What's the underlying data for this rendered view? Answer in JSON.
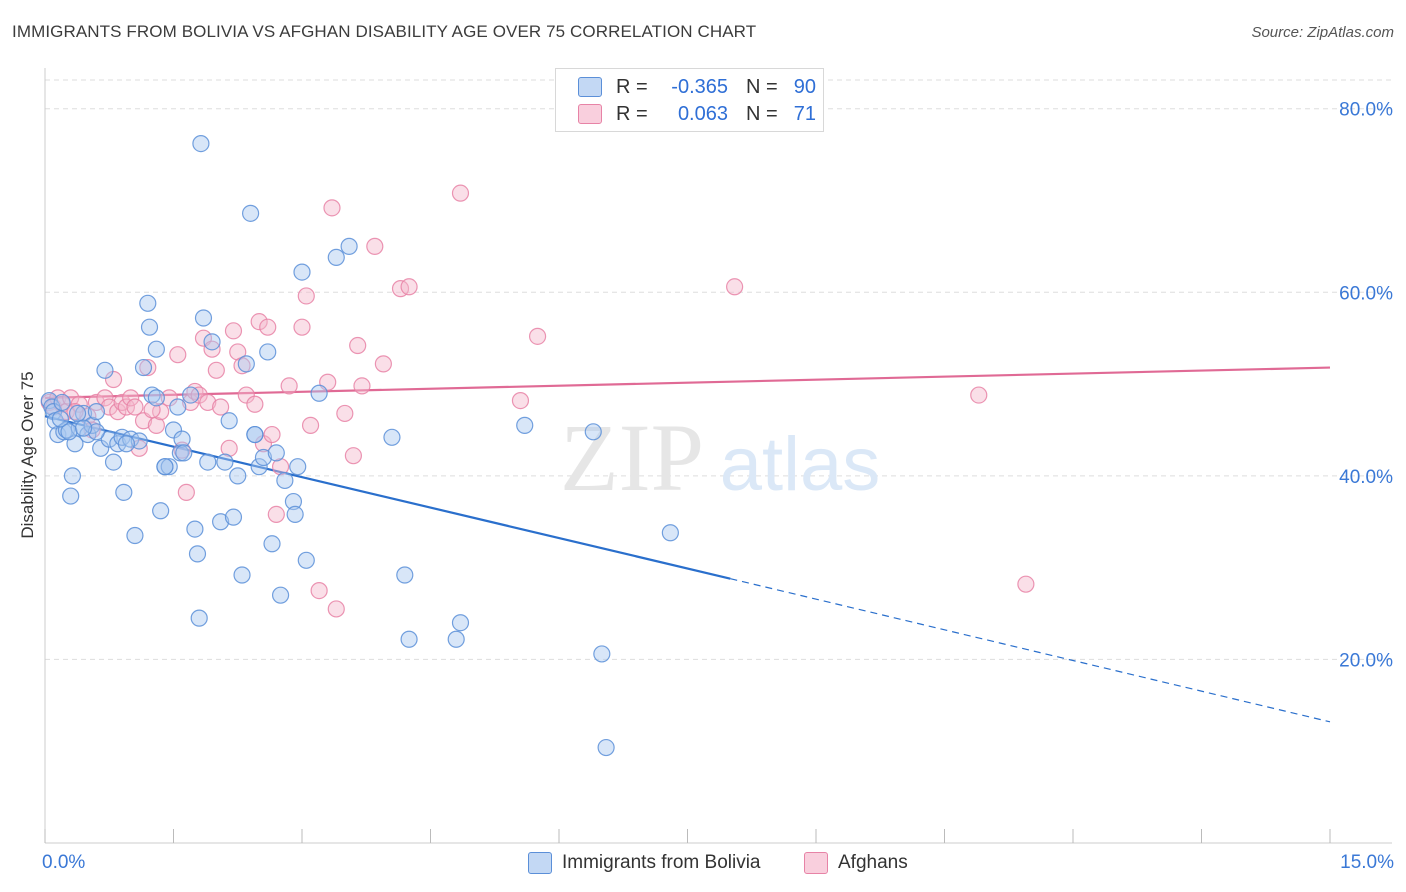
{
  "title": "IMMIGRANTS FROM BOLIVIA VS AFGHAN DISABILITY AGE OVER 75 CORRELATION CHART",
  "source": "Source: ZipAtlas.com",
  "legend_top": {
    "rows": [
      {
        "r_label": "R =",
        "r_value": "-0.365",
        "n_label": "N =",
        "n_value": "90"
      },
      {
        "r_label": "R =",
        "r_value": "0.063",
        "n_label": "N =",
        "n_value": "71"
      }
    ]
  },
  "legend_bottom": [
    "Immigrants from Bolivia",
    "Afghans"
  ],
  "x_tick_left": "0.0%",
  "x_tick_right": "15.0%",
  "watermark": {
    "zip": "ZIP",
    "atlas": "atlas"
  },
  "colors": {
    "blue_fill": "#a9c8f0",
    "blue_stroke": "#5b8fd8",
    "blue_line": "#2a6fcc",
    "pink_fill": "#f5b8cc",
    "pink_stroke": "#e783a6",
    "pink_line": "#e06a95",
    "tick_label": "#3a78d6",
    "grid": "#dddddd"
  },
  "chart_data": {
    "type": "scatter",
    "title": "IMMIGRANTS FROM BOLIVIA VS AFGHAN DISABILITY AGE OVER 75 CORRELATION CHART",
    "xlabel": "",
    "ylabel": "Disability Age Over 75",
    "xlim": [
      0,
      15
    ],
    "ylim": [
      0,
      84
    ],
    "y_ticks": [
      {
        "value": 20,
        "label": "20.0%"
      },
      {
        "value": 40,
        "label": "40.0%"
      },
      {
        "value": 60,
        "label": "60.0%"
      },
      {
        "value": 80,
        "label": "80.0%"
      }
    ],
    "grid": true,
    "legend_position": "top-center",
    "series": [
      {
        "name": "Immigrants from Bolivia",
        "R": -0.365,
        "N": 90,
        "trend": {
          "x0": 0,
          "y0": 46.5,
          "x1": 8.0,
          "y1": 28.8,
          "dash_x1": 15.0,
          "dash_y1": 13.2
        },
        "points": [
          [
            0.05,
            48.2
          ],
          [
            0.08,
            47.5
          ],
          [
            0.1,
            47.0
          ],
          [
            0.12,
            46.0
          ],
          [
            0.15,
            44.5
          ],
          [
            0.2,
            48.0
          ],
          [
            0.22,
            44.8
          ],
          [
            0.25,
            45.0
          ],
          [
            0.3,
            37.8
          ],
          [
            0.32,
            40.0
          ],
          [
            0.35,
            43.5
          ],
          [
            0.4,
            45.2
          ],
          [
            0.45,
            46.8
          ],
          [
            0.5,
            44.5
          ],
          [
            0.55,
            45.5
          ],
          [
            0.6,
            47.0
          ],
          [
            0.65,
            43.0
          ],
          [
            0.7,
            51.5
          ],
          [
            0.75,
            44.0
          ],
          [
            0.8,
            41.5
          ],
          [
            0.85,
            43.5
          ],
          [
            0.9,
            44.2
          ],
          [
            0.92,
            38.2
          ],
          [
            1.0,
            44.0
          ],
          [
            1.05,
            33.5
          ],
          [
            1.1,
            43.8
          ],
          [
            1.15,
            51.8
          ],
          [
            1.2,
            58.8
          ],
          [
            1.22,
            56.2
          ],
          [
            1.25,
            48.8
          ],
          [
            1.3,
            53.8
          ],
          [
            1.35,
            36.2
          ],
          [
            1.4,
            41.0
          ],
          [
            1.45,
            41.0
          ],
          [
            1.5,
            45.0
          ],
          [
            1.55,
            47.5
          ],
          [
            1.58,
            42.5
          ],
          [
            1.6,
            44.0
          ],
          [
            1.62,
            42.5
          ],
          [
            1.7,
            48.8
          ],
          [
            1.75,
            34.2
          ],
          [
            1.78,
            31.5
          ],
          [
            1.8,
            24.5
          ],
          [
            1.82,
            76.2
          ],
          [
            1.85,
            57.2
          ],
          [
            1.9,
            41.5
          ],
          [
            1.95,
            54.6
          ],
          [
            2.05,
            35.0
          ],
          [
            2.1,
            41.5
          ],
          [
            2.15,
            46.0
          ],
          [
            2.2,
            35.5
          ],
          [
            2.25,
            40.0
          ],
          [
            2.3,
            29.2
          ],
          [
            2.35,
            52.2
          ],
          [
            2.4,
            68.6
          ],
          [
            2.45,
            44.5
          ],
          [
            2.5,
            41.0
          ],
          [
            2.55,
            42.0
          ],
          [
            2.6,
            53.5
          ],
          [
            2.65,
            32.6
          ],
          [
            2.7,
            42.5
          ],
          [
            2.75,
            27.0
          ],
          [
            2.8,
            39.5
          ],
          [
            2.9,
            37.2
          ],
          [
            2.92,
            35.8
          ],
          [
            2.95,
            41.0
          ],
          [
            3.0,
            62.2
          ],
          [
            3.05,
            30.8
          ],
          [
            3.2,
            49.0
          ],
          [
            3.4,
            63.8
          ],
          [
            3.55,
            65.0
          ],
          [
            4.05,
            44.2
          ],
          [
            4.2,
            29.2
          ],
          [
            4.25,
            22.2
          ],
          [
            4.8,
            22.2
          ],
          [
            4.85,
            24.0
          ],
          [
            5.6,
            45.5
          ],
          [
            6.4,
            44.8
          ],
          [
            6.5,
            20.6
          ],
          [
            6.55,
            10.4
          ],
          [
            7.3,
            33.8
          ],
          [
            0.18,
            46.2
          ],
          [
            0.28,
            44.8
          ],
          [
            0.38,
            46.8
          ],
          [
            0.6,
            44.8
          ],
          [
            1.4,
            41.0
          ],
          [
            0.95,
            43.5
          ],
          [
            0.45,
            45.2
          ],
          [
            2.45,
            44.5
          ],
          [
            1.3,
            48.5
          ]
        ]
      },
      {
        "name": "Afghans",
        "R": 0.063,
        "N": 71,
        "trend": {
          "x0": 0,
          "y0": 48.5,
          "x1": 15.0,
          "y1": 51.8
        },
        "points": [
          [
            0.05,
            48.0
          ],
          [
            0.1,
            47.5
          ],
          [
            0.15,
            48.5
          ],
          [
            0.2,
            47.8
          ],
          [
            0.25,
            47.0
          ],
          [
            0.3,
            48.5
          ],
          [
            0.4,
            47.8
          ],
          [
            0.5,
            46.5
          ],
          [
            0.55,
            45.0
          ],
          [
            0.6,
            48.0
          ],
          [
            0.7,
            48.5
          ],
          [
            0.75,
            47.5
          ],
          [
            0.8,
            50.5
          ],
          [
            0.85,
            47.0
          ],
          [
            0.9,
            48.0
          ],
          [
            0.95,
            47.5
          ],
          [
            1.0,
            48.5
          ],
          [
            1.05,
            47.5
          ],
          [
            1.1,
            43.0
          ],
          [
            1.15,
            46.0
          ],
          [
            1.2,
            51.8
          ],
          [
            1.3,
            45.5
          ],
          [
            1.35,
            47.0
          ],
          [
            1.45,
            48.5
          ],
          [
            1.55,
            53.2
          ],
          [
            1.6,
            42.8
          ],
          [
            1.65,
            38.2
          ],
          [
            1.7,
            48.0
          ],
          [
            1.75,
            49.2
          ],
          [
            1.8,
            48.8
          ],
          [
            1.85,
            55.0
          ],
          [
            1.9,
            48.0
          ],
          [
            1.95,
            53.8
          ],
          [
            2.0,
            51.5
          ],
          [
            2.05,
            47.5
          ],
          [
            2.15,
            43.0
          ],
          [
            2.2,
            55.8
          ],
          [
            2.25,
            53.5
          ],
          [
            2.3,
            52.0
          ],
          [
            2.35,
            48.8
          ],
          [
            2.45,
            47.8
          ],
          [
            2.5,
            56.8
          ],
          [
            2.55,
            43.5
          ],
          [
            2.6,
            56.2
          ],
          [
            2.65,
            44.5
          ],
          [
            2.7,
            35.8
          ],
          [
            2.75,
            41.0
          ],
          [
            2.85,
            49.8
          ],
          [
            3.0,
            56.2
          ],
          [
            3.05,
            59.6
          ],
          [
            3.1,
            45.5
          ],
          [
            3.2,
            27.5
          ],
          [
            3.3,
            50.2
          ],
          [
            3.35,
            69.2
          ],
          [
            3.4,
            25.5
          ],
          [
            3.5,
            46.8
          ],
          [
            3.6,
            42.2
          ],
          [
            3.65,
            54.2
          ],
          [
            3.7,
            49.8
          ],
          [
            3.85,
            65.0
          ],
          [
            3.95,
            52.2
          ],
          [
            4.15,
            60.4
          ],
          [
            4.25,
            60.6
          ],
          [
            4.85,
            70.8
          ],
          [
            5.55,
            48.2
          ],
          [
            5.75,
            55.2
          ],
          [
            8.05,
            60.6
          ],
          [
            10.9,
            48.8
          ],
          [
            11.45,
            28.2
          ],
          [
            0.35,
            47.0
          ],
          [
            1.25,
            47.2
          ]
        ]
      }
    ]
  }
}
